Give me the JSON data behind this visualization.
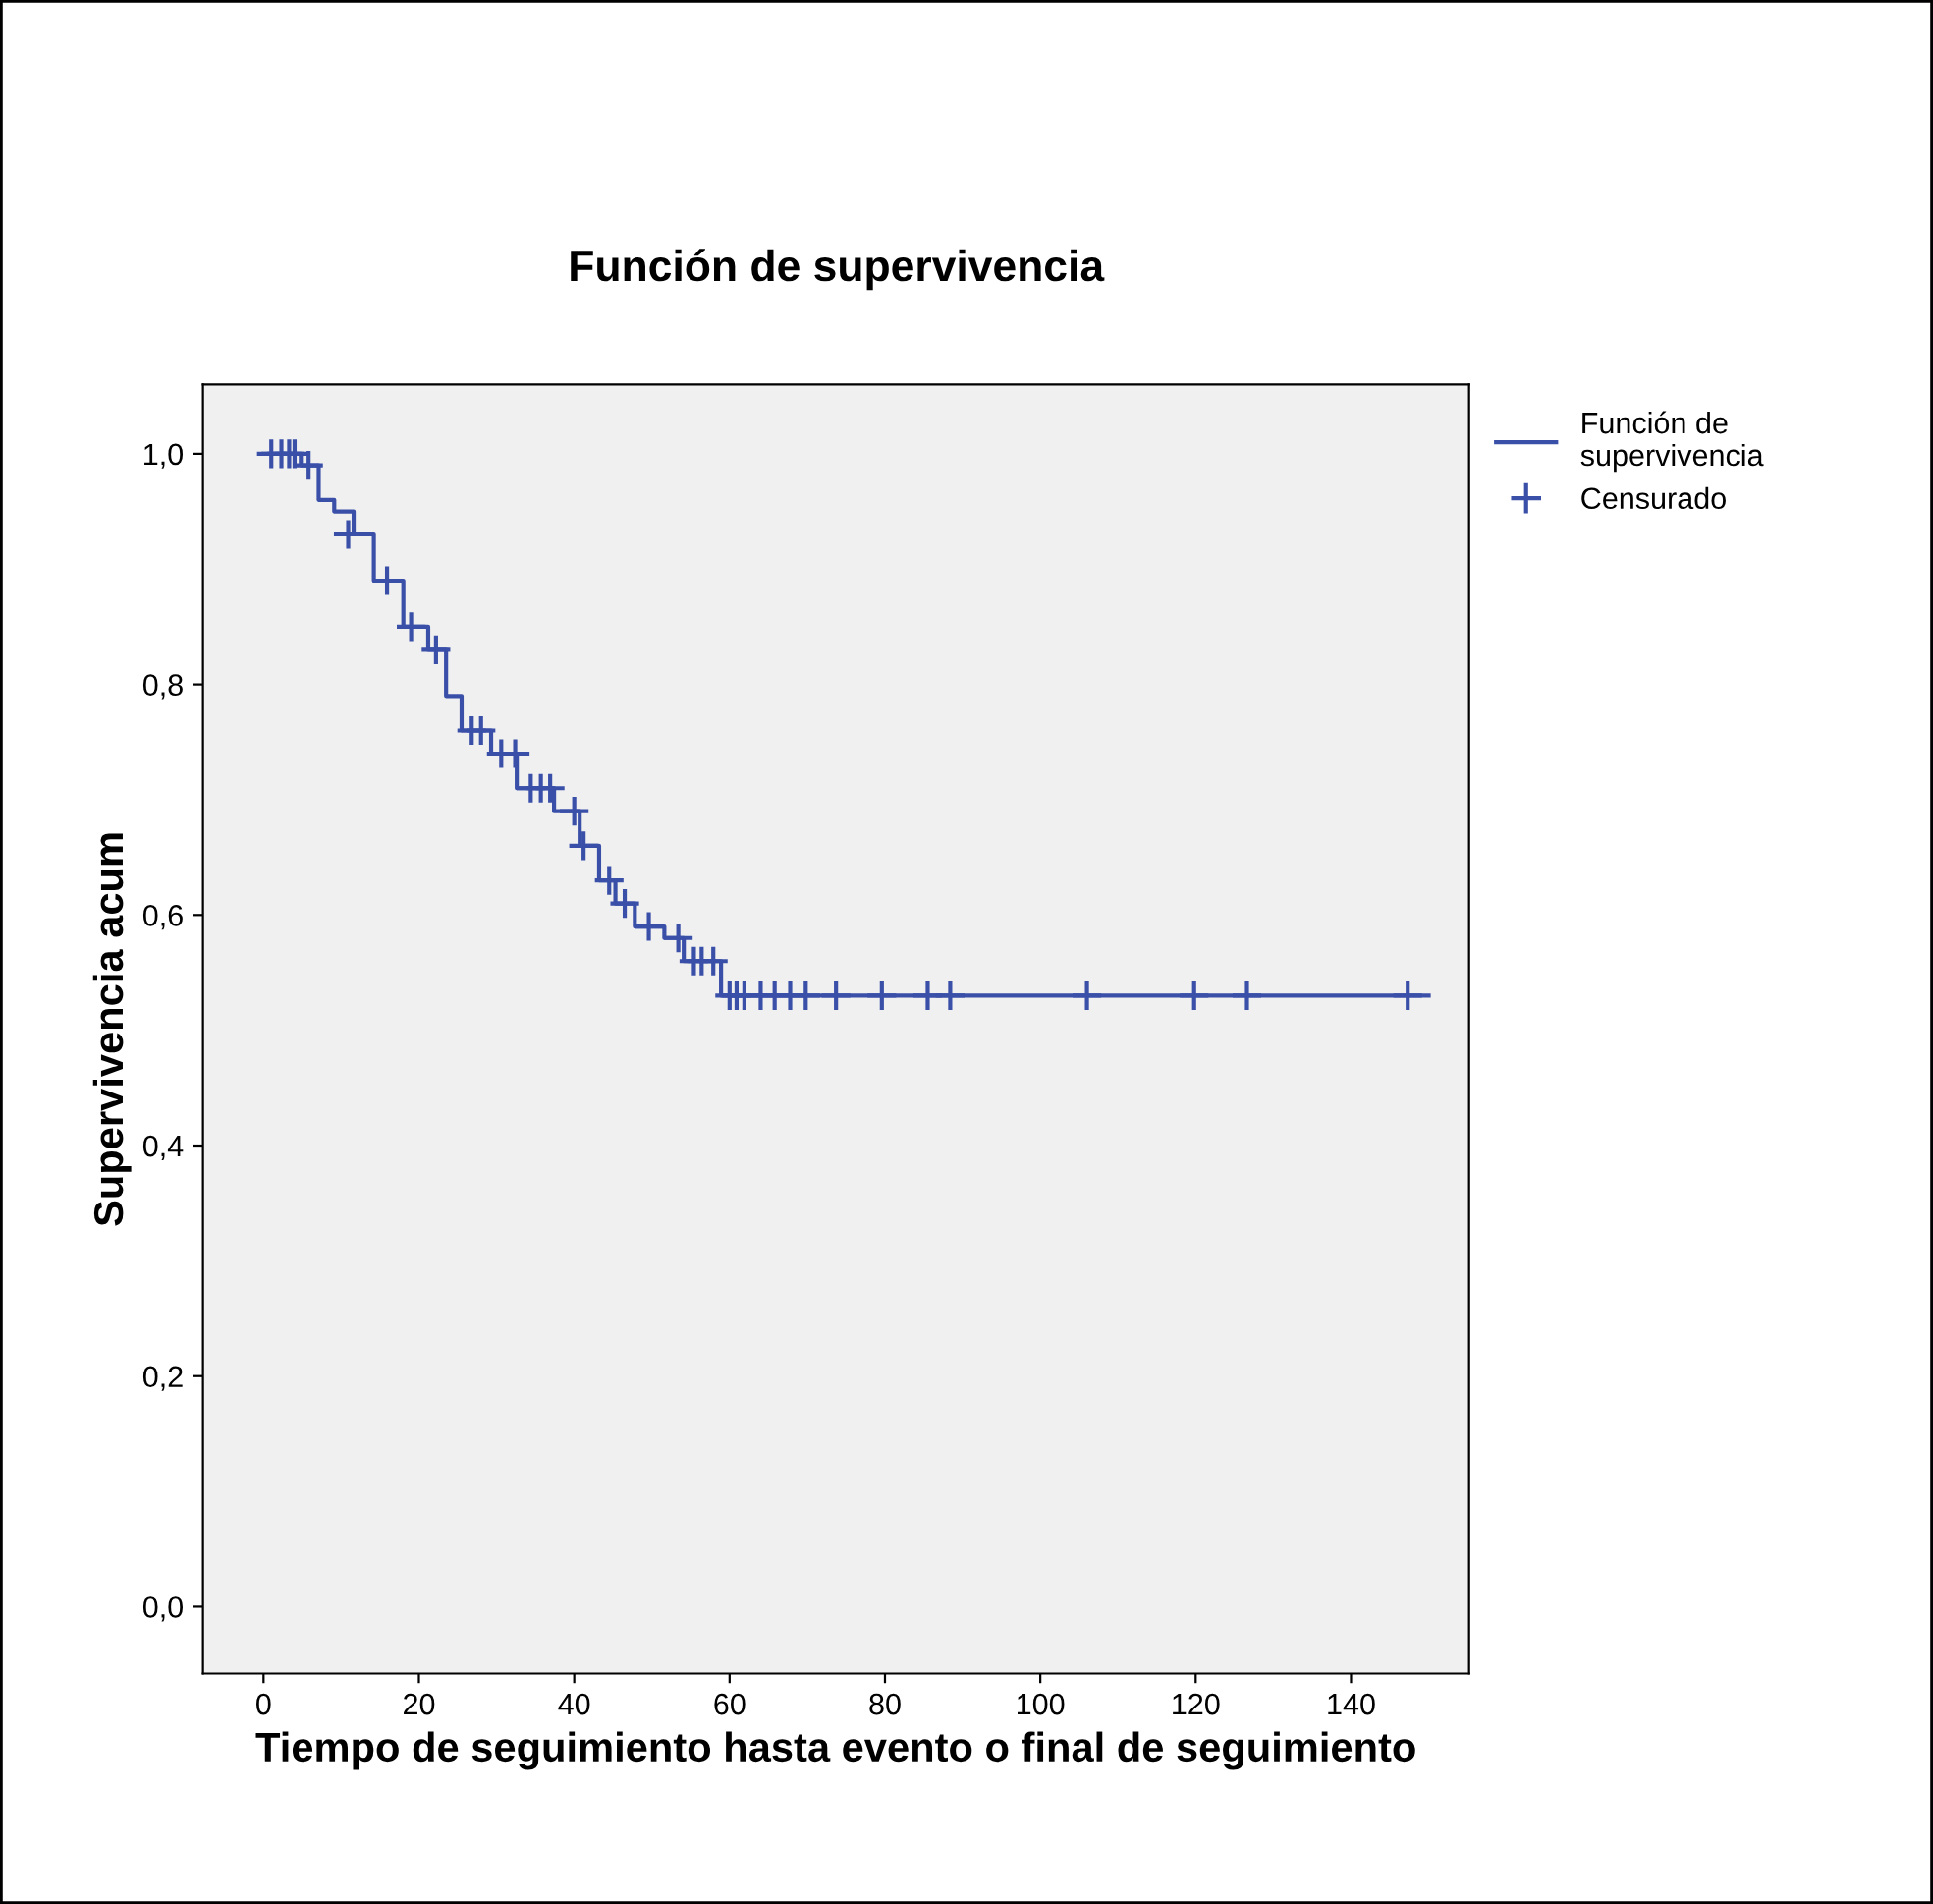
{
  "chart_data": {
    "type": "step",
    "title": "Función de supervivencia",
    "xlabel": "Tiempo de seguimiento hasta evento o final de seguimiento",
    "ylabel": "Supervivencia acum",
    "xlim": [
      -7.8,
      155.2
    ],
    "ylim": [
      -0.058,
      1.06
    ],
    "xticks": [
      0,
      20,
      40,
      60,
      80,
      100,
      120,
      140
    ],
    "yticks": [
      {
        "value": 0,
        "label": "0,0"
      },
      {
        "value": 0.2,
        "label": "0,2"
      },
      {
        "value": 0.4,
        "label": "0,4"
      },
      {
        "value": 0.6,
        "label": "0,6"
      },
      {
        "value": 0.8,
        "label": "0,8"
      },
      {
        "value": 1.0,
        "label": "1,0"
      }
    ],
    "grid": false,
    "legend": "top right",
    "series": [
      {
        "name": "Función de supervivencia",
        "color": "#3a4fa8",
        "marker": "none",
        "x": [
          0,
          4.8,
          7.1,
          9.1,
          11.6,
          14.2,
          18.0,
          21.2,
          23.5,
          25.5,
          29.3,
          32.6,
          37.4,
          40.7,
          43.2,
          45.3,
          47.8,
          51.6,
          54.1,
          58.9,
          150
        ],
        "values": [
          1.0,
          0.99,
          0.96,
          0.95,
          0.93,
          0.89,
          0.85,
          0.83,
          0.79,
          0.76,
          0.74,
          0.71,
          0.69,
          0.66,
          0.63,
          0.61,
          0.59,
          0.58,
          0.56,
          0.53,
          0.53
        ]
      },
      {
        "name": "Censurado",
        "type": "scatter",
        "color": "#3a4fa8",
        "marker": "cross",
        "x": [
          1.0,
          2.3,
          3.3,
          4.0,
          5.8,
          10.9,
          15.9,
          19.0,
          22.2,
          26.8,
          28.0,
          30.6,
          32.4,
          34.4,
          35.7,
          36.9,
          40.0,
          41.2,
          44.5,
          46.5,
          49.6,
          53.4,
          55.4,
          56.4,
          57.9,
          60.0,
          60.9,
          61.9,
          64.0,
          65.8,
          67.8,
          69.8,
          73.7,
          79.6,
          85.5,
          88.4,
          106,
          119.8,
          126.6,
          147.3
        ],
        "values": [
          1.0,
          1.0,
          1.0,
          1.0,
          0.99,
          0.93,
          0.89,
          0.85,
          0.83,
          0.76,
          0.76,
          0.74,
          0.74,
          0.71,
          0.71,
          0.71,
          0.69,
          0.66,
          0.63,
          0.61,
          0.59,
          0.58,
          0.56,
          0.56,
          0.56,
          0.53,
          0.53,
          0.53,
          0.53,
          0.53,
          0.53,
          0.53,
          0.53,
          0.53,
          0.53,
          0.53,
          0.53,
          0.53,
          0.53,
          0.53
        ]
      }
    ]
  }
}
